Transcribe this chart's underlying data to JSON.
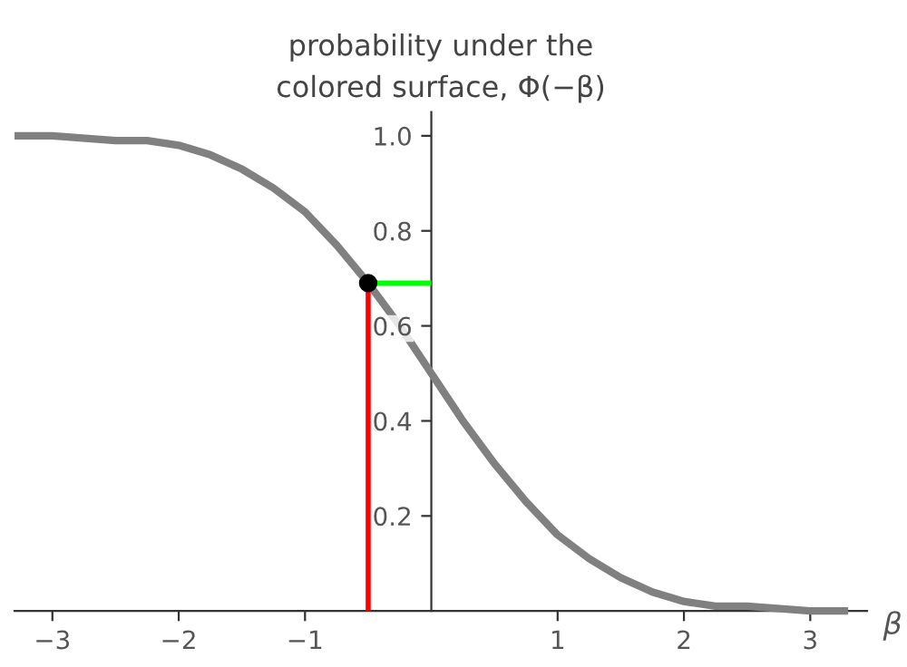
{
  "chart_data": {
    "type": "line",
    "title": "probability under the\ncolored surface, Φ(−β)",
    "xlabel": "β",
    "xlim": [
      -3.3,
      3.45
    ],
    "ylim": [
      0,
      1.05
    ],
    "xticks": [
      {
        "value": -3,
        "label": "−3"
      },
      {
        "value": -2,
        "label": "−2"
      },
      {
        "value": -1,
        "label": "−1"
      },
      1,
      2,
      3
    ],
    "yticks": [
      0.2,
      0.4,
      0.6,
      0.8,
      {
        "value": 1.0,
        "label": "1.0"
      }
    ],
    "grid": false,
    "legend": false,
    "series": [
      {
        "color": "#808080",
        "x": [
          -3.3,
          -3,
          -2.5,
          -2.25,
          -2,
          -1.75,
          -1.5,
          -1.25,
          -1,
          -0.75,
          -0.5,
          -0.25,
          0,
          0.25,
          0.5,
          0.75,
          1,
          1.25,
          1.5,
          1.75,
          2,
          2.25,
          2.5,
          3,
          3.3
        ],
        "values": [
          1.0,
          1.0,
          0.99,
          0.99,
          0.98,
          0.96,
          0.93,
          0.89,
          0.84,
          0.77,
          0.69,
          0.6,
          0.5,
          0.4,
          0.31,
          0.23,
          0.16,
          0.11,
          0.07,
          0.04,
          0.02,
          0.01,
          0.01,
          0.0,
          0.0
        ]
      },
      {
        "color": "#ff0000",
        "x": [
          -0.5,
          -0.5
        ],
        "values": [
          0,
          0.69
        ]
      },
      {
        "color": "#00ff00",
        "x": [
          0,
          -0.5
        ],
        "values": [
          0.69,
          0.69
        ]
      },
      {
        "type": "scatter",
        "color": "#000000",
        "x": [
          -0.5
        ],
        "values": [
          0.69
        ]
      }
    ]
  }
}
